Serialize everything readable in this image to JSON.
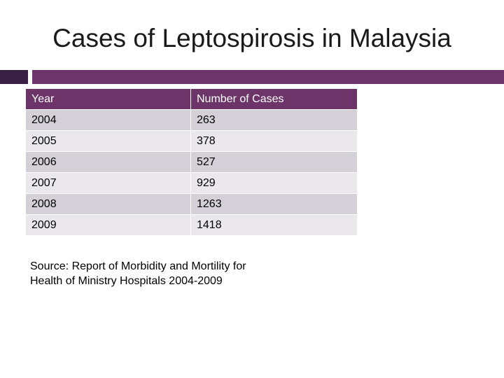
{
  "title": "Cases of Leptospirosis in Malaysia",
  "colors": {
    "accent": "#6c3468",
    "accent_dark": "#3a1f44",
    "row_odd": "#d5cfd8",
    "row_even": "#ebe8ec"
  },
  "table": {
    "headers": [
      "Year",
      "Number of Cases"
    ],
    "rows": [
      [
        "2004",
        "263"
      ],
      [
        "2005",
        "378"
      ],
      [
        "2006",
        "527"
      ],
      [
        "2007",
        "929"
      ],
      [
        "2008",
        "1263"
      ],
      [
        "2009",
        "1418"
      ]
    ]
  },
  "source": {
    "line1": "Source: Report of Morbidity and Mortility for",
    "line2": "Health of Ministry Hospitals 2004-2009"
  }
}
